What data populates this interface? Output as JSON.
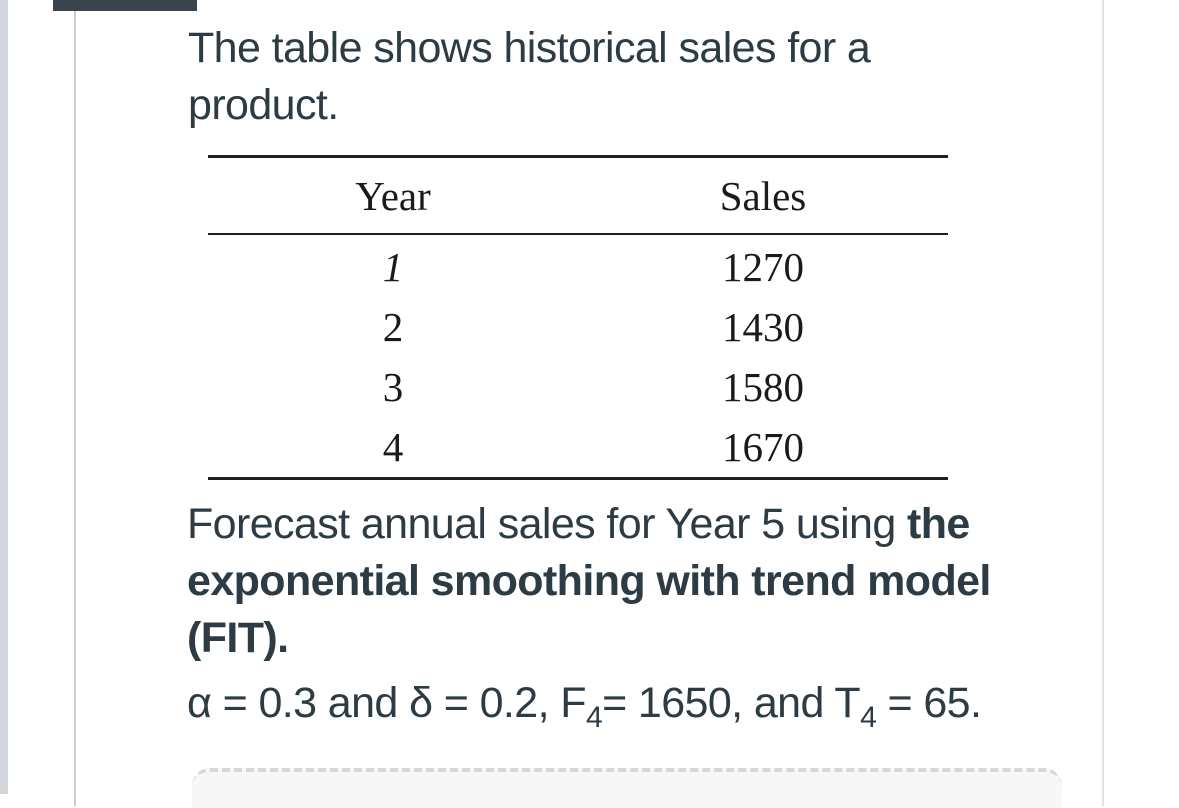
{
  "intro": {
    "text": "The table shows historical sales for a product."
  },
  "table": {
    "headers": [
      "Year",
      "Sales"
    ],
    "rows": [
      {
        "year": "1",
        "sales": "1270"
      },
      {
        "year": "2",
        "sales": "1430"
      },
      {
        "year": "3",
        "sales": "1580"
      },
      {
        "year": "4",
        "sales": "1670"
      }
    ]
  },
  "question": {
    "prefix": "Forecast annual sales for Year 5 using ",
    "bold": "the exponential smoothing with trend model (FIT)."
  },
  "params": {
    "alpha_text": "α = 0.3 and δ = 0.2, F",
    "f_sub": "4",
    "f_text": "= 1650, and T",
    "t_sub": "4",
    "t_text": " = 65."
  },
  "colors": {
    "text": "#2d3b45",
    "tab": "#3b444e"
  }
}
